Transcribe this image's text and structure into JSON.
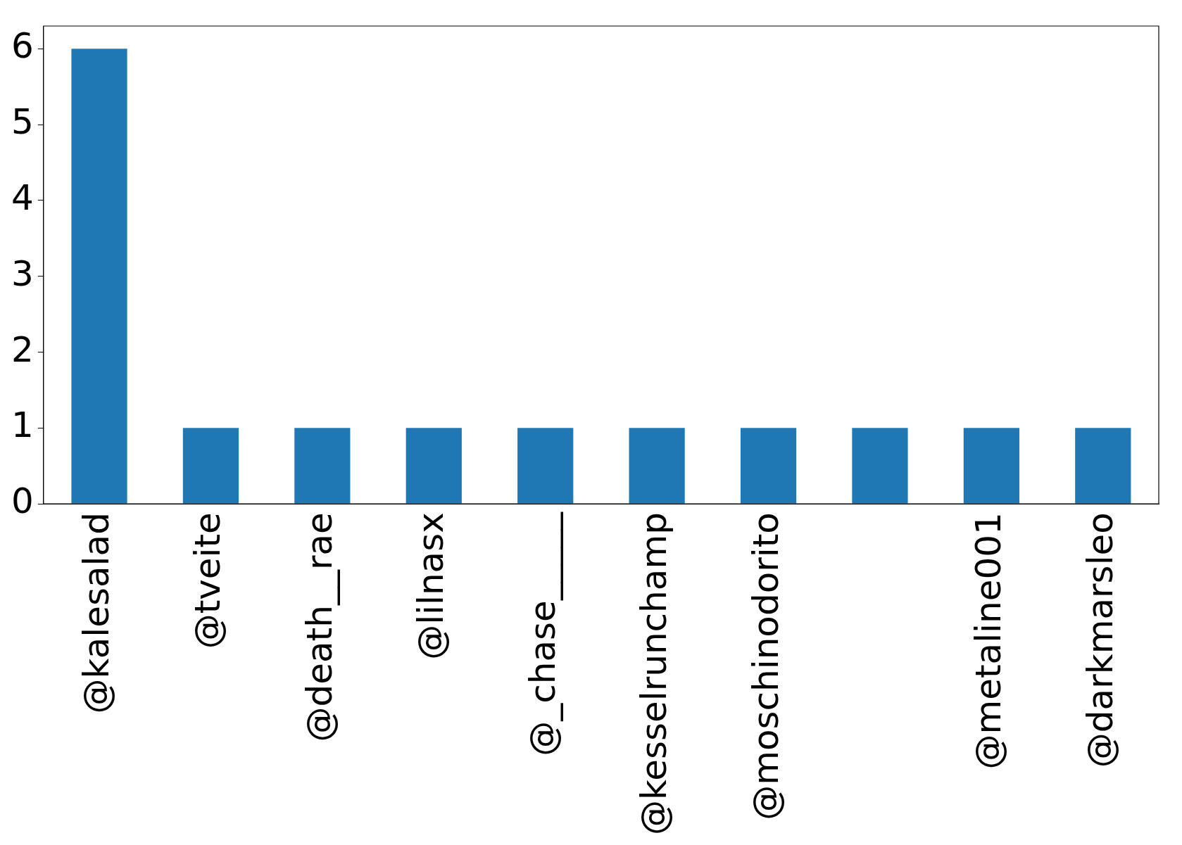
{
  "chart_data": {
    "type": "bar",
    "categories": [
      "@kalesalad",
      "@tveite",
      "@death__rae",
      "@lilnasx",
      "@_chase_____",
      "@kesselrunchamp",
      "@moschinodorito",
      null,
      "@metaline001",
      "@darkmarsleo"
    ],
    "values": [
      6,
      1,
      1,
      1,
      1,
      1,
      1,
      1,
      1,
      1
    ],
    "color": "#1f77b4",
    "ylim": [
      0,
      6.3
    ],
    "yticks": [
      0,
      1,
      2,
      3,
      4,
      5,
      6
    ],
    "grid": false,
    "legend": false
  }
}
